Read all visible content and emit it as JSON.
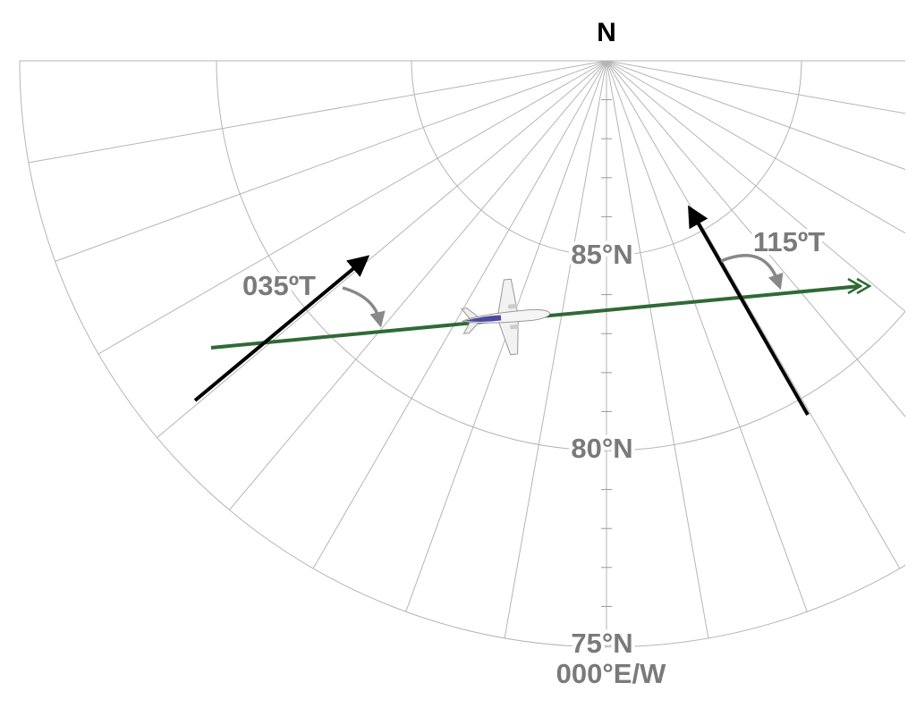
{
  "labels": {
    "north": "N",
    "lat85": "85°N",
    "lat80": "80°N",
    "lat75": "75°N",
    "meridian": "000°E/W",
    "heading_left": "035ºT",
    "heading_right": "115ºT"
  }
}
